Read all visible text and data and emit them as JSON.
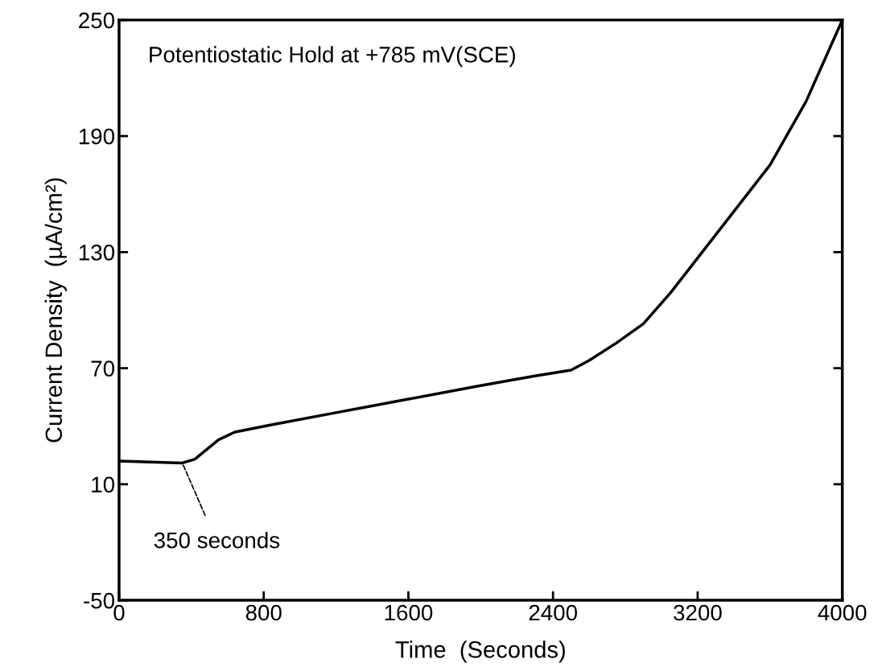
{
  "chart_data": {
    "type": "line",
    "xlabel": "Time  (Seconds)",
    "ylabel": "Current Density  (µA/cm²)",
    "annotations": [
      "Potentiostatic Hold at +785 mV(SCE)",
      {
        "text": "350 seconds",
        "x": 350,
        "y": 21
      }
    ],
    "series": [
      {
        "color": "#000000",
        "x": [
          0,
          350,
          420,
          550,
          640,
          860,
          1200,
          1600,
          2000,
          2300,
          2500,
          2600,
          2750,
          2900,
          3050,
          3200,
          3400,
          3600,
          3800,
          4000
        ],
        "values": [
          22,
          21,
          23,
          33,
          37,
          41,
          47,
          54,
          61,
          66,
          69,
          74,
          83,
          93,
          109,
          127,
          151,
          175,
          208,
          250
        ]
      }
    ],
    "xlim": [
      0,
      4000
    ],
    "xticks": [
      0,
      800,
      1600,
      2400,
      3200,
      4000
    ],
    "ylim": [
      -50,
      250
    ],
    "yticks": [
      -50,
      10,
      70,
      130,
      190,
      250
    ],
    "grid": false,
    "legend": false,
    "marker": "none",
    "line_style": "solid"
  }
}
